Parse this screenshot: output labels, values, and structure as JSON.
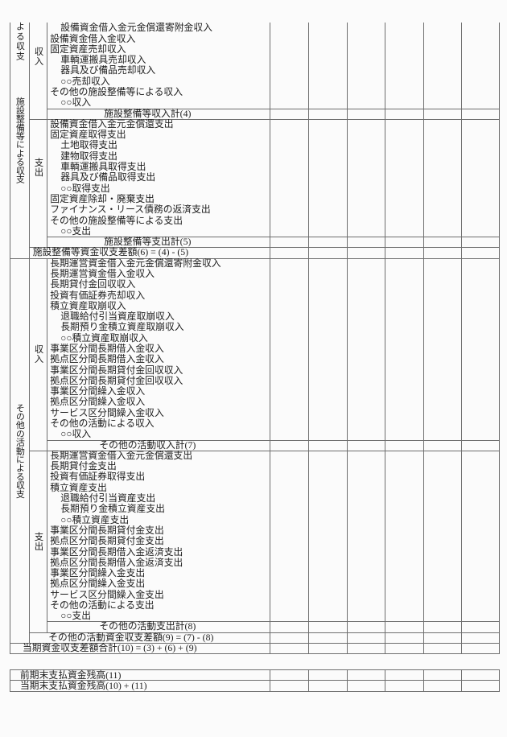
{
  "page": {
    "background": "#fbfbfb",
    "line_color": "#6e6e6e"
  },
  "table": {
    "amount_columns": 6,
    "sections": [
      {
        "group_label_continued": "よる収支",
        "group_label": "施設整備等による収支",
        "income": {
          "header": "収入",
          "items": [
            {
              "label": "設備資金借入金元金償還寄附金収入",
              "indent": 2
            },
            {
              "label": "設備資金借入金収入",
              "indent": 1
            },
            {
              "label": "固定資産売却収入",
              "indent": 1
            },
            {
              "label": "車輌運搬具売却収入",
              "indent": 2
            },
            {
              "label": "器具及び備品売却収入",
              "indent": 2
            },
            {
              "label": "○○売却収入",
              "indent": 2
            },
            {
              "label": "その他の施設整備等による収入",
              "indent": 1
            },
            {
              "label": "○○収入",
              "indent": 2
            }
          ],
          "total_label": "施設整備等収入計(4)"
        },
        "expense": {
          "header": "支出",
          "items": [
            {
              "label": "設備資金借入金元金償還支出",
              "indent": 1
            },
            {
              "label": "固定資産取得支出",
              "indent": 1
            },
            {
              "label": "土地取得支出",
              "indent": 2
            },
            {
              "label": "建物取得支出",
              "indent": 2
            },
            {
              "label": "車輌運搬具取得支出",
              "indent": 2
            },
            {
              "label": "器具及び備品取得支出",
              "indent": 2
            },
            {
              "label": "○○取得支出",
              "indent": 2
            },
            {
              "label": "固定資産除却・廃棄支出",
              "indent": 1
            },
            {
              "label": "ファイナンス・リース債務の返済支出",
              "indent": 1
            },
            {
              "label": "その他の施設整備等による支出",
              "indent": 1
            },
            {
              "label": "○○支出",
              "indent": 2
            }
          ],
          "total_label": "施設整備等支出計(5)"
        },
        "balance_label": "施設整備等資金収支差額(6) = (4) - (5)"
      },
      {
        "group_label": "その他の活動による収支",
        "income": {
          "header": "収入",
          "items": [
            {
              "label": "長期運営資金借入金元金償還寄附金収入",
              "indent": 1
            },
            {
              "label": "長期運営資金借入金収入",
              "indent": 1
            },
            {
              "label": "長期貸付金回収収入",
              "indent": 1
            },
            {
              "label": "投資有価証券売却収入",
              "indent": 1
            },
            {
              "label": "積立資産取崩収入",
              "indent": 1
            },
            {
              "label": "退職給付引当資産取崩収入",
              "indent": 2
            },
            {
              "label": "長期預り金積立資産取崩収入",
              "indent": 2
            },
            {
              "label": "○○積立資産取崩収入",
              "indent": 2
            },
            {
              "label": "事業区分間長期借入金収入",
              "indent": 1
            },
            {
              "label": "拠点区分間長期借入金収入",
              "indent": 1
            },
            {
              "label": "事業区分間長期貸付金回収収入",
              "indent": 1
            },
            {
              "label": "拠点区分間長期貸付金回収収入",
              "indent": 1
            },
            {
              "label": "事業区分間繰入金収入",
              "indent": 1
            },
            {
              "label": "拠点区分間繰入金収入",
              "indent": 1
            },
            {
              "label": "サービス区分間繰入金収入",
              "indent": 1
            },
            {
              "label": "その他の活動による収入",
              "indent": 1
            },
            {
              "label": "○○収入",
              "indent": 2
            }
          ],
          "total_label": "その他の活動収入計(7)"
        },
        "expense": {
          "header": "支出",
          "items": [
            {
              "label": "長期運営資金借入金元金償還支出",
              "indent": 1
            },
            {
              "label": "長期貸付金支出",
              "indent": 1
            },
            {
              "label": "投資有価証券取得支出",
              "indent": 1
            },
            {
              "label": "積立資産支出",
              "indent": 1
            },
            {
              "label": "退職給付引当資産支出",
              "indent": 2
            },
            {
              "label": "長期預り金積立資産支出",
              "indent": 2
            },
            {
              "label": "○○積立資産支出",
              "indent": 2
            },
            {
              "label": "事業区分間長期貸付金支出",
              "indent": 1
            },
            {
              "label": "拠点区分間長期貸付金支出",
              "indent": 1
            },
            {
              "label": "事業区分間長期借入金返済支出",
              "indent": 1
            },
            {
              "label": "拠点区分間長期借入金返済支出",
              "indent": 1
            },
            {
              "label": "事業区分間繰入金支出",
              "indent": 1
            },
            {
              "label": "拠点区分間繰入金支出",
              "indent": 1
            },
            {
              "label": "サービス区分間繰入金支出",
              "indent": 1
            },
            {
              "label": "その他の活動による支出",
              "indent": 1
            },
            {
              "label": "○○支出",
              "indent": 2
            }
          ],
          "total_label": "その他の活動支出計(8)"
        },
        "balance_label": "その他の活動資金収支差額(9) = (7) - (8)"
      }
    ],
    "grand_total_label": "当期資金収支差額合計(10) = (3) + (6) + (9)"
  },
  "footer_table": {
    "rows": [
      {
        "label": "前期末支払資金残高(11)"
      },
      {
        "label": "当期末支払資金残高(10) + (11)"
      }
    ]
  }
}
